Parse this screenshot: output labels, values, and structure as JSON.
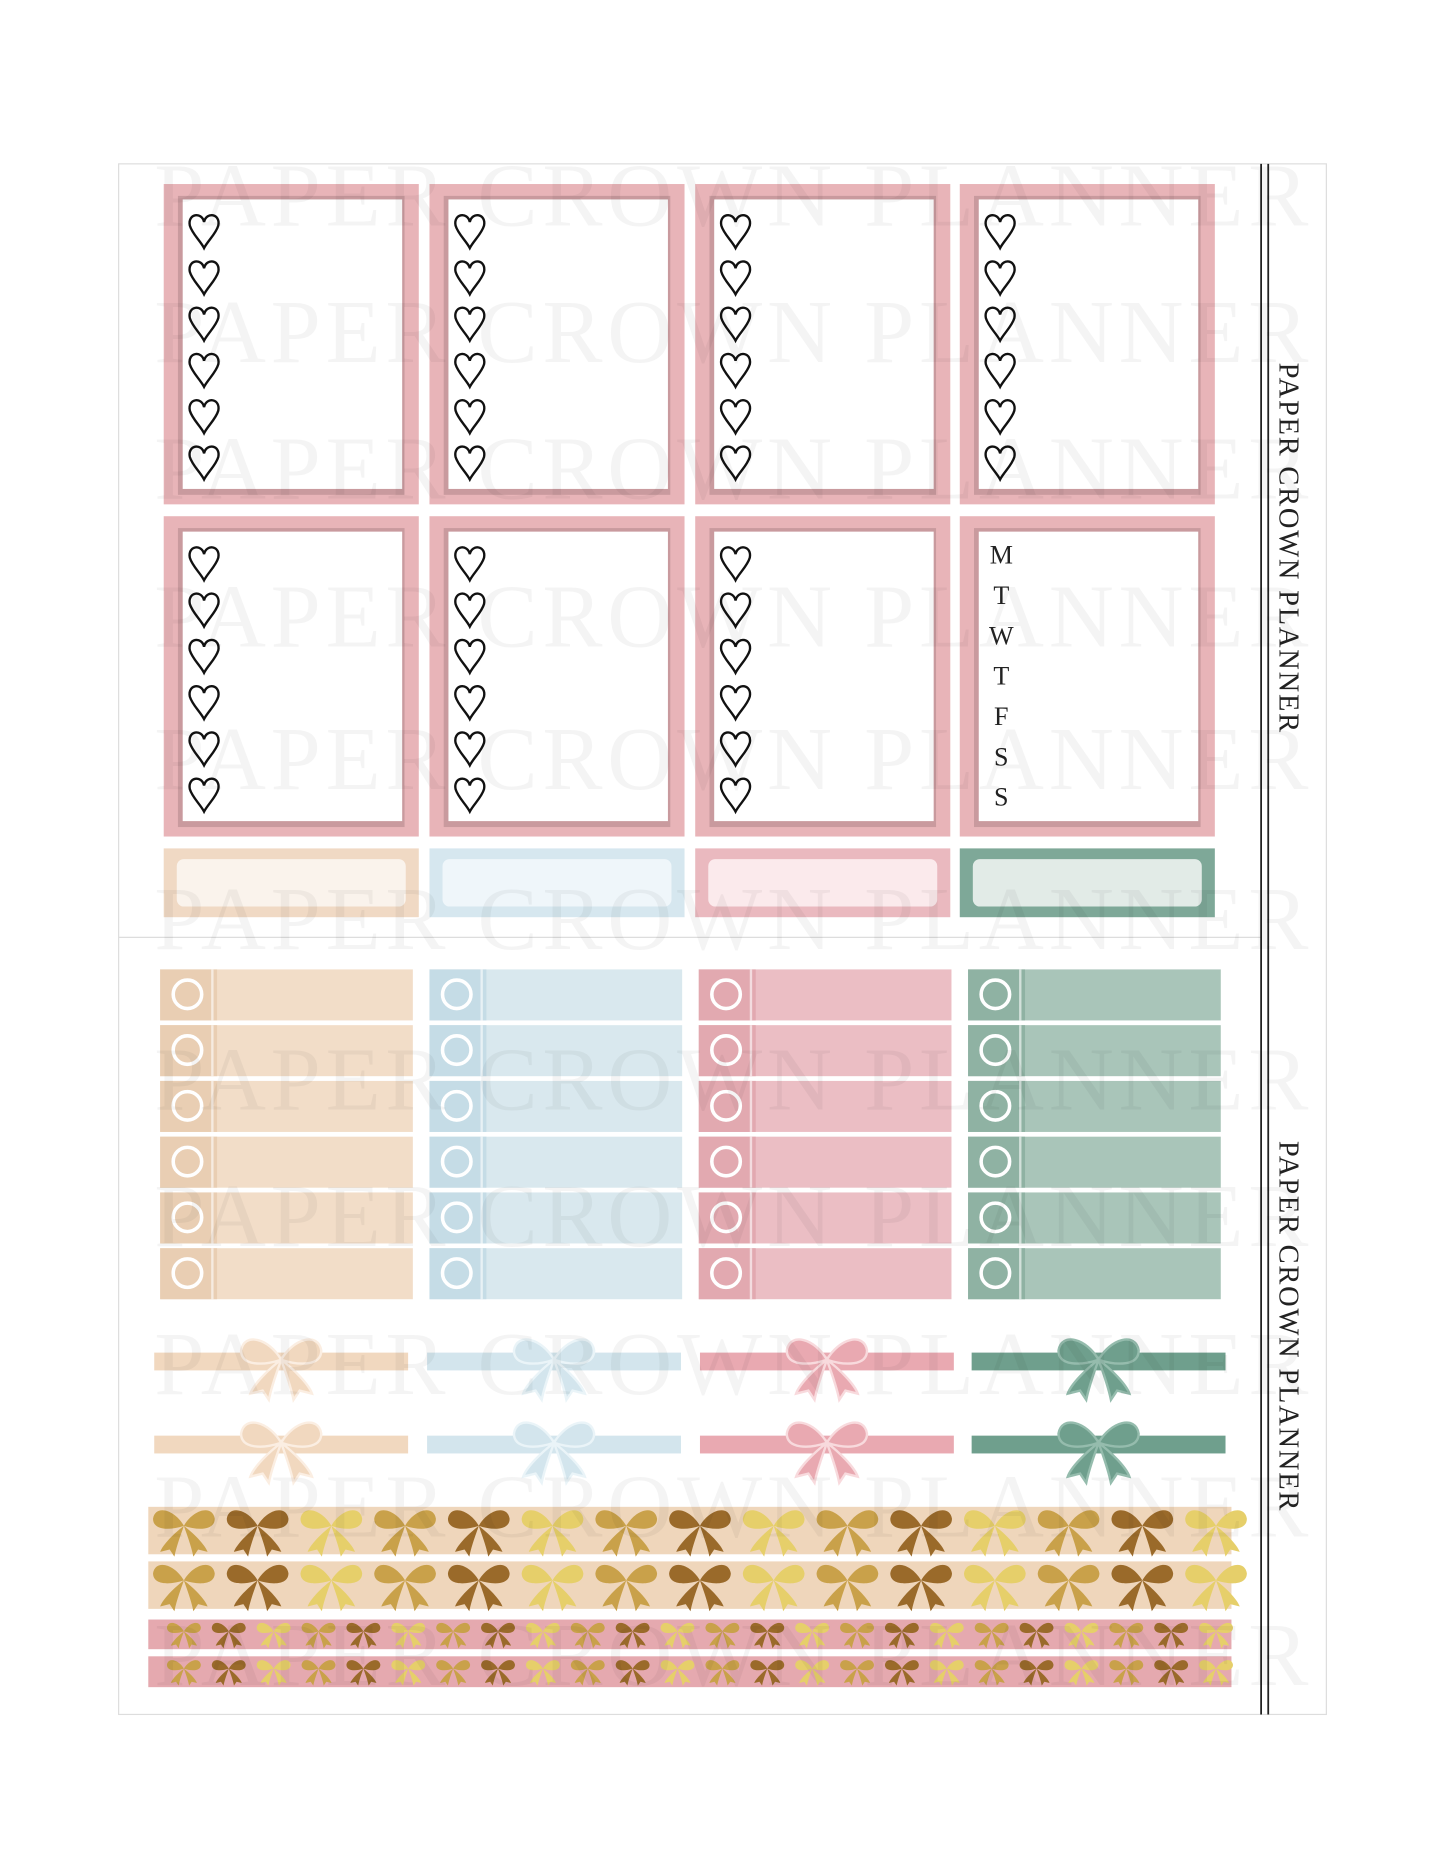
{
  "side_labels": [
    "PAPER CROWN PLANNER",
    "PAPER CROWN PLANNER"
  ],
  "watermark": "PAPER CROWN PLANNER",
  "weekdays": [
    "M",
    "T",
    "W",
    "T",
    "F",
    "S",
    "S"
  ]
}
